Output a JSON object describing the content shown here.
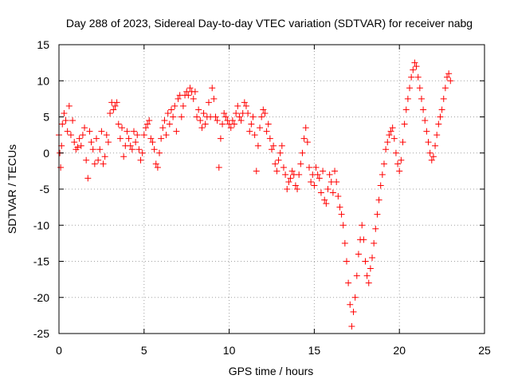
{
  "chart_data": {
    "type": "scatter",
    "title": "Day 288 of 2023, Sidereal Day-to-day VTEC variation (SDTVAR) for receiver nabg",
    "xlabel": "GPS time / hours",
    "ylabel": "SDTVAR / TECUs",
    "xlim": [
      0,
      25
    ],
    "ylim": [
      -25,
      15
    ],
    "x_ticks": [
      0,
      5,
      10,
      15,
      20,
      25
    ],
    "y_ticks": [
      -25,
      -20,
      -15,
      -10,
      -5,
      0,
      5,
      10,
      15
    ],
    "x_tick_labels": [
      "0",
      "5",
      "10",
      "15",
      "20",
      "25"
    ],
    "y_tick_labels": [
      "-25",
      "-20",
      "-15",
      "-10",
      "-5",
      "0",
      "5",
      "10",
      "15"
    ],
    "grid": true,
    "marker": "+",
    "series": [
      {
        "name": "SDTVAR",
        "color": "#ff0000",
        "x": [
          0.0,
          0.05,
          0.1,
          0.15,
          0.2,
          0.3,
          0.4,
          0.5,
          0.6,
          0.7,
          0.8,
          0.9,
          1.0,
          1.1,
          1.2,
          1.3,
          1.4,
          1.5,
          1.6,
          1.7,
          1.8,
          1.9,
          2.0,
          2.1,
          2.2,
          2.3,
          2.4,
          2.5,
          2.6,
          2.7,
          2.8,
          2.9,
          3.0,
          3.1,
          3.2,
          3.3,
          3.4,
          3.5,
          3.6,
          3.7,
          3.8,
          3.9,
          4.0,
          4.1,
          4.2,
          4.3,
          4.4,
          4.5,
          4.6,
          4.7,
          4.8,
          4.9,
          5.0,
          5.1,
          5.2,
          5.3,
          5.4,
          5.5,
          5.6,
          5.7,
          5.8,
          5.9,
          6.0,
          6.1,
          6.2,
          6.3,
          6.4,
          6.5,
          6.6,
          6.7,
          6.8,
          6.9,
          7.0,
          7.1,
          7.2,
          7.3,
          7.4,
          7.5,
          7.6,
          7.7,
          7.8,
          7.9,
          8.0,
          8.1,
          8.2,
          8.3,
          8.4,
          8.5,
          8.6,
          8.7,
          8.8,
          8.9,
          9.0,
          9.1,
          9.2,
          9.3,
          9.4,
          9.5,
          9.6,
          9.7,
          9.8,
          9.9,
          10.0,
          10.1,
          10.2,
          10.3,
          10.4,
          10.5,
          10.6,
          10.7,
          10.8,
          10.9,
          11.0,
          11.1,
          11.2,
          11.3,
          11.4,
          11.5,
          11.6,
          11.7,
          11.8,
          11.9,
          12.0,
          12.1,
          12.2,
          12.3,
          12.4,
          12.5,
          12.6,
          12.7,
          12.8,
          12.9,
          13.0,
          13.1,
          13.2,
          13.3,
          13.4,
          13.5,
          13.6,
          13.7,
          13.8,
          13.9,
          14.0,
          14.1,
          14.2,
          14.3,
          14.4,
          14.5,
          14.6,
          14.7,
          14.8,
          14.9,
          15.0,
          15.1,
          15.2,
          15.3,
          15.4,
          15.5,
          15.6,
          15.7,
          15.8,
          15.9,
          16.0,
          16.1,
          16.2,
          16.3,
          16.4,
          16.5,
          16.6,
          16.7,
          16.8,
          16.9,
          17.0,
          17.1,
          17.2,
          17.3,
          17.4,
          17.5,
          17.6,
          17.7,
          17.8,
          17.9,
          18.0,
          18.1,
          18.2,
          18.3,
          18.4,
          18.5,
          18.6,
          18.7,
          18.8,
          18.9,
          19.0,
          19.1,
          19.2,
          19.3,
          19.4,
          19.5,
          19.6,
          19.7,
          19.8,
          19.9,
          20.0,
          20.1,
          20.2,
          20.3,
          20.4,
          20.5,
          20.6,
          20.7,
          20.8,
          20.9,
          21.0,
          21.1,
          21.2,
          21.3,
          21.4,
          21.5,
          21.6,
          21.7,
          21.8,
          21.9,
          22.0,
          22.1,
          22.2,
          22.3,
          22.4,
          22.5,
          22.6,
          22.7,
          22.8,
          22.9,
          23.0
        ],
        "y": [
          2.5,
          0.0,
          -2.0,
          1.0,
          4.0,
          5.5,
          4.5,
          3.0,
          6.5,
          2.5,
          4.5,
          1.5,
          0.5,
          0.8,
          2.0,
          1.0,
          2.5,
          3.5,
          -1.0,
          -3.5,
          3.0,
          1.5,
          0.5,
          -1.5,
          2.0,
          -1.0,
          0.5,
          3.0,
          -1.5,
          -0.5,
          2.5,
          1.5,
          5.5,
          7.0,
          6.0,
          6.5,
          7.0,
          4.0,
          2.0,
          3.5,
          -0.5,
          1.0,
          3.0,
          2.0,
          1.0,
          0.5,
          3.0,
          1.5,
          2.5,
          0.5,
          -1.0,
          0.0,
          2.5,
          3.5,
          4.0,
          4.5,
          2.0,
          1.5,
          0.5,
          -1.5,
          -2.0,
          0.0,
          2.0,
          3.5,
          4.5,
          2.5,
          5.5,
          4.0,
          6.0,
          5.0,
          6.5,
          3.0,
          7.5,
          8.0,
          5.0,
          6.5,
          8.0,
          8.5,
          8.0,
          9.0,
          8.5,
          7.5,
          8.5,
          5.0,
          6.0,
          4.5,
          3.5,
          5.5,
          4.0,
          5.0,
          7.0,
          5.0,
          9.0,
          7.5,
          5.0,
          4.5,
          -2.0,
          2.0,
          4.0,
          5.5,
          5.0,
          4.5,
          4.0,
          3.5,
          4.5,
          4.0,
          5.5,
          6.5,
          5.0,
          4.5,
          5.5,
          7.0,
          6.5,
          5.5,
          3.0,
          4.0,
          5.0,
          2.5,
          -2.5,
          1.0,
          3.5,
          5.0,
          6.0,
          5.5,
          3.0,
          4.0,
          2.0,
          0.5,
          1.0,
          -1.5,
          -2.5,
          -1.0,
          0.0,
          1.0,
          -2.0,
          -3.0,
          -5.0,
          -4.0,
          -3.5,
          -2.5,
          -3.0,
          -4.5,
          -5.0,
          -3.0,
          -1.5,
          0.0,
          2.0,
          3.5,
          1.5,
          -2.0,
          -4.0,
          -3.0,
          -4.5,
          -2.0,
          -3.0,
          -3.5,
          -5.5,
          -2.5,
          -6.5,
          -7.0,
          -5.0,
          -3.0,
          -4.0,
          -5.5,
          -2.5,
          -4.0,
          -6.0,
          -7.5,
          -8.5,
          -10.0,
          -12.5,
          -15.0,
          -18.0,
          -21.0,
          -24.0,
          -22.0,
          -20.0,
          -17.0,
          -14.0,
          -12.0,
          -10.0,
          -12.0,
          -15.0,
          -17.0,
          -18.0,
          -16.0,
          -14.5,
          -12.5,
          -10.5,
          -8.5,
          -6.5,
          -4.5,
          -3.0,
          -1.5,
          0.5,
          1.5,
          2.5,
          3.0,
          3.5,
          2.0,
          0.0,
          -1.5,
          -2.5,
          -1.0,
          1.5,
          4.0,
          6.0,
          7.5,
          9.0,
          10.5,
          11.5,
          12.5,
          12.0,
          10.5,
          9.0,
          7.5,
          6.0,
          4.5,
          3.0,
          1.5,
          0.0,
          -1.0,
          -0.5,
          1.0,
          2.5,
          4.0,
          5.0,
          6.0,
          7.5,
          9.0,
          10.5,
          11.0,
          10.0
        ]
      }
    ]
  }
}
